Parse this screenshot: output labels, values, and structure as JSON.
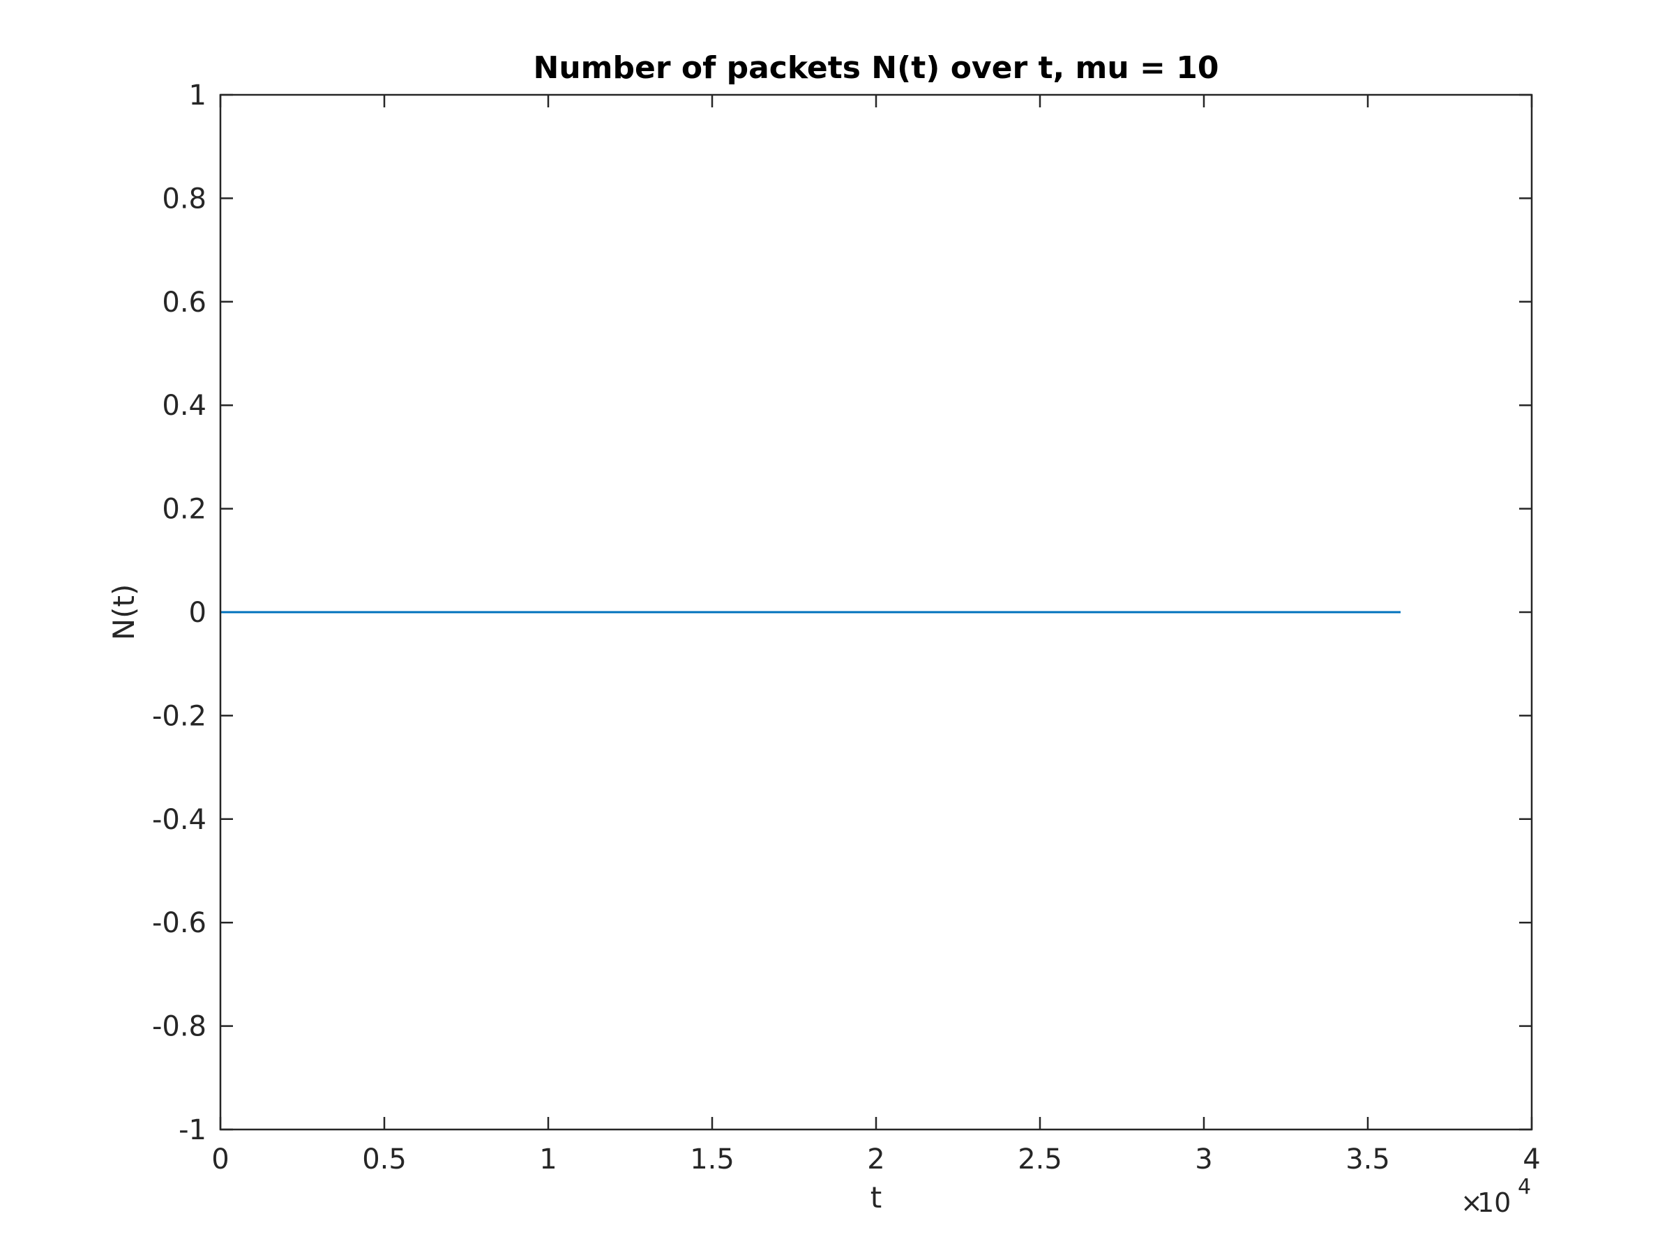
{
  "chart_data": {
    "type": "line",
    "title": "Number of packets N(t) over t, mu = 10",
    "xlabel": "t",
    "ylabel": "N(t)",
    "xlim": [
      0,
      40000
    ],
    "ylim": [
      -1,
      1
    ],
    "x_tick_values": [
      0,
      5000,
      10000,
      15000,
      20000,
      25000,
      30000,
      35000,
      40000
    ],
    "x_tick_labels": [
      "0",
      "0.5",
      "1",
      "1.5",
      "2",
      "2.5",
      "3",
      "3.5",
      "4"
    ],
    "x_exponent": {
      "times": "×",
      "base": "10",
      "power": "4"
    },
    "y_tick_values": [
      -1,
      -0.8,
      -0.6,
      -0.4,
      -0.2,
      0,
      0.2,
      0.4,
      0.6,
      0.8,
      1
    ],
    "y_tick_labels": [
      "-1",
      "-0.8",
      "-0.6",
      "-0.4",
      "-0.2",
      "0",
      "0.2",
      "0.4",
      "0.6",
      "0.8",
      "1"
    ],
    "grid": false,
    "series": [
      {
        "color": "#0072BD",
        "x": [
          0,
          36000
        ],
        "y": [
          0,
          0
        ]
      }
    ]
  },
  "colors": {
    "axis": "#262626",
    "background": "#ffffff",
    "line": "#0072BD"
  }
}
